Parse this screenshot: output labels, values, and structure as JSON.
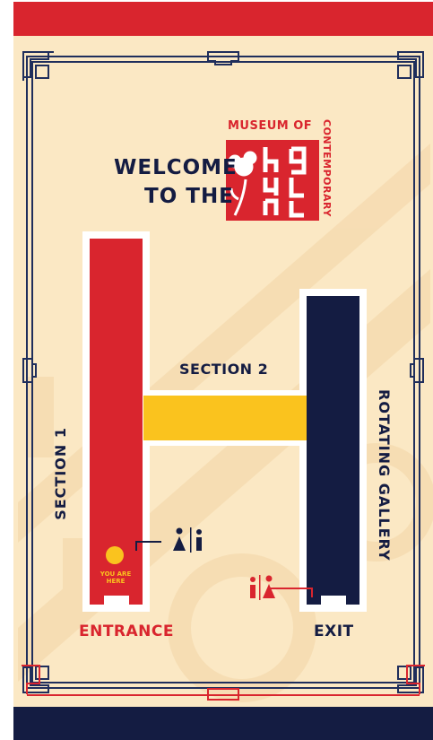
{
  "colors": {
    "background": "#fbe8c4",
    "red": "#d9252e",
    "navy": "#141c42",
    "yellow": "#fac31e",
    "border": "#1f2e5c",
    "watermark": "#f6dcb2",
    "white": "#ffffff"
  },
  "header": {
    "welcome_line1": "WELCOME",
    "welcome_line2": "TO THE"
  },
  "logo": {
    "top_text": "MUSEUM OF",
    "side_text": "CONTEMPORARY",
    "emblem_icon": "poppy-flower-icon"
  },
  "map": {
    "section1": "SECTION 1",
    "section2": "SECTION 2",
    "rotating_gallery": "ROTATING GALLERY",
    "entrance": "ENTRANCE",
    "exit": "EXIT",
    "you_are_here": "YOU ARE HERE"
  },
  "icons": {
    "restroom": "restroom-icon",
    "info": "info-icon",
    "location_marker": "location-marker-icon"
  }
}
